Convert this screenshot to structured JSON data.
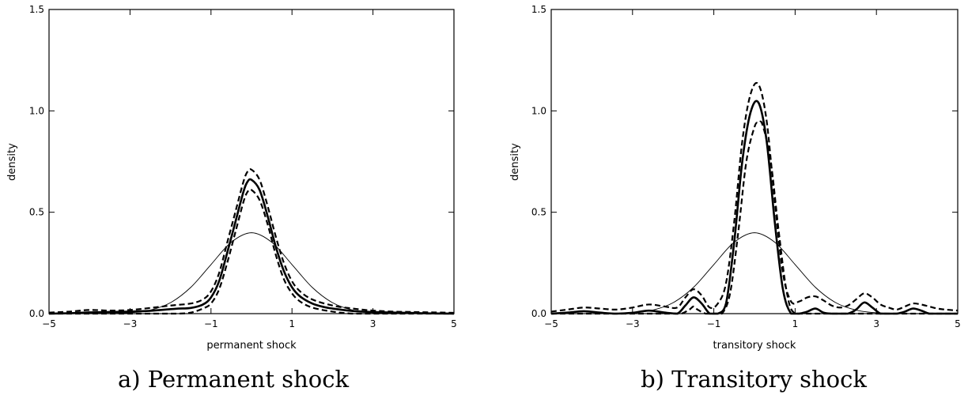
{
  "chart_data": [
    {
      "type": "line",
      "xlabel": "permanent shock",
      "ylabel": "density",
      "caption": "a) Permanent shock",
      "xlim": [
        -5,
        5
      ],
      "ylim": [
        0,
        1.5
      ],
      "xticks": [
        -5,
        -3,
        -1,
        1,
        3,
        5
      ],
      "xtick_labels": [
        "−5",
        "−3",
        "−1",
        "1",
        "3",
        "5"
      ],
      "yticks": [
        0.0,
        0.5,
        1.0,
        1.5
      ],
      "ytick_labels": [
        "0.0",
        "0.5",
        "1.0",
        "1.5"
      ],
      "grid": false,
      "series": [
        {
          "style": "thin-solid",
          "x": [
            -5,
            -4.5,
            -4,
            -3.5,
            -3,
            -2.5,
            -2,
            -1.5,
            -1,
            -0.5,
            0,
            0.5,
            1,
            1.5,
            2,
            2.5,
            3,
            3.5,
            4,
            4.5,
            5
          ],
          "y": [
            0.0,
            0.0,
            0.0001,
            0.0009,
            0.0044,
            0.0175,
            0.054,
            0.1295,
            0.242,
            0.3521,
            0.3989,
            0.3521,
            0.242,
            0.1295,
            0.054,
            0.0175,
            0.0044,
            0.0009,
            0.0001,
            0.0,
            0.0
          ]
        },
        {
          "style": "thick-solid",
          "x": [
            -5,
            -4.5,
            -4,
            -3.5,
            -3,
            -2.5,
            -2,
            -1.8,
            -1.5,
            -1.2,
            -1,
            -0.8,
            -0.6,
            -0.4,
            -0.2,
            -0.1,
            0,
            0.2,
            0.4,
            0.6,
            0.8,
            1,
            1.2,
            1.5,
            1.8,
            2,
            2.5,
            3,
            3.5,
            4,
            4.5,
            5
          ],
          "y": [
            0.0,
            0.002,
            0.006,
            0.008,
            0.01,
            0.014,
            0.022,
            0.025,
            0.028,
            0.045,
            0.08,
            0.16,
            0.3,
            0.45,
            0.6,
            0.65,
            0.66,
            0.61,
            0.48,
            0.33,
            0.21,
            0.13,
            0.085,
            0.05,
            0.032,
            0.025,
            0.013,
            0.008,
            0.005,
            0.003,
            0.001,
            0.0
          ]
        },
        {
          "style": "dashed-upper",
          "x": [
            -5,
            -4.5,
            -4,
            -3.5,
            -3,
            -2.5,
            -2,
            -1.5,
            -1.2,
            -1,
            -0.8,
            -0.6,
            -0.4,
            -0.2,
            -0.1,
            0,
            0.2,
            0.4,
            0.6,
            0.8,
            1,
            1.2,
            1.5,
            2,
            2.5,
            3,
            3.5,
            4,
            4.5,
            5
          ],
          "y": [
            0.005,
            0.01,
            0.018,
            0.015,
            0.018,
            0.028,
            0.04,
            0.05,
            0.07,
            0.11,
            0.2,
            0.35,
            0.5,
            0.65,
            0.7,
            0.71,
            0.66,
            0.53,
            0.38,
            0.25,
            0.16,
            0.11,
            0.07,
            0.04,
            0.025,
            0.015,
            0.01,
            0.008,
            0.006,
            0.004
          ]
        },
        {
          "style": "dashed-lower",
          "x": [
            -5,
            -4,
            -3,
            -2.5,
            -2,
            -1.8,
            -1.5,
            -1.2,
            -1,
            -0.8,
            -0.6,
            -0.4,
            -0.2,
            -0.1,
            0,
            0.2,
            0.4,
            0.6,
            0.8,
            1,
            1.2,
            1.5,
            2,
            2.5,
            3,
            3.5,
            4,
            5
          ],
          "y": [
            0.0,
            0.0,
            0.0,
            0.0,
            0.0,
            0.0,
            0.005,
            0.025,
            0.05,
            0.12,
            0.25,
            0.4,
            0.55,
            0.6,
            0.61,
            0.56,
            0.44,
            0.29,
            0.17,
            0.1,
            0.06,
            0.03,
            0.01,
            0.0,
            0.0,
            0.0,
            0.0,
            0.0
          ]
        }
      ]
    },
    {
      "type": "line",
      "xlabel": "transitory shock",
      "ylabel": "density",
      "caption": "b) Transitory shock",
      "xlim": [
        -5,
        5
      ],
      "ylim": [
        0,
        1.5
      ],
      "xticks": [
        -5,
        -3,
        -1,
        1,
        3,
        5
      ],
      "xtick_labels": [
        "−5",
        "−3",
        "−1",
        "1",
        "3",
        "5"
      ],
      "yticks": [
        0.0,
        0.5,
        1.0,
        1.5
      ],
      "ytick_labels": [
        "0.0",
        "0.5",
        "1.0",
        "1.5"
      ],
      "grid": false,
      "series": [
        {
          "style": "thin-solid",
          "x": [
            -5,
            -4.5,
            -4,
            -3.5,
            -3,
            -2.5,
            -2,
            -1.5,
            -1,
            -0.5,
            0,
            0.5,
            1,
            1.5,
            2,
            2.5,
            3,
            3.5,
            4,
            4.5,
            5
          ],
          "y": [
            0.0,
            0.0,
            0.0001,
            0.0009,
            0.0044,
            0.0175,
            0.054,
            0.1295,
            0.242,
            0.3521,
            0.3989,
            0.3521,
            0.242,
            0.1295,
            0.054,
            0.0175,
            0.0044,
            0.0009,
            0.0001,
            0.0,
            0.0
          ]
        },
        {
          "style": "thick-solid",
          "x": [
            -5,
            -4.6,
            -4.2,
            -3.8,
            -3.4,
            -3.0,
            -2.6,
            -2.2,
            -1.9,
            -1.7,
            -1.5,
            -1.3,
            -1.1,
            -0.9,
            -0.7,
            -0.5,
            -0.3,
            -0.1,
            0.1,
            0.3,
            0.5,
            0.7,
            0.9,
            1.1,
            1.3,
            1.5,
            1.7,
            1.9,
            2.1,
            2.3,
            2.5,
            2.7,
            2.9,
            3.1,
            3.3,
            3.5,
            3.7,
            3.9,
            4.1,
            4.3,
            4.5,
            4.7,
            5
          ],
          "y": [
            0.0,
            0.005,
            0.012,
            0.005,
            0.0,
            0.004,
            0.015,
            0.005,
            0.0,
            0.04,
            0.08,
            0.05,
            0.0,
            0.0,
            0.05,
            0.35,
            0.75,
            0.99,
            1.04,
            0.85,
            0.45,
            0.12,
            0.0,
            0.0,
            0.01,
            0.025,
            0.005,
            0.0,
            0.0,
            0.0,
            0.02,
            0.055,
            0.03,
            0.0,
            0.0,
            0.0,
            0.01,
            0.025,
            0.015,
            0.0,
            0.0,
            0.0,
            0.0
          ]
        },
        {
          "style": "dashed-upper",
          "x": [
            -5,
            -4.6,
            -4.2,
            -3.8,
            -3.4,
            -3.0,
            -2.6,
            -2.2,
            -1.9,
            -1.7,
            -1.5,
            -1.3,
            -1.1,
            -0.9,
            -0.7,
            -0.5,
            -0.3,
            -0.1,
            0.1,
            0.3,
            0.5,
            0.7,
            0.9,
            1.1,
            1.3,
            1.5,
            1.7,
            1.9,
            2.1,
            2.3,
            2.5,
            2.7,
            2.9,
            3.1,
            3.3,
            3.5,
            3.7,
            3.9,
            4.1,
            4.3,
            4.5,
            4.7,
            5
          ],
          "y": [
            0.01,
            0.02,
            0.03,
            0.025,
            0.02,
            0.03,
            0.045,
            0.035,
            0.03,
            0.08,
            0.12,
            0.09,
            0.03,
            0.05,
            0.15,
            0.45,
            0.85,
            1.08,
            1.13,
            0.95,
            0.55,
            0.2,
            0.06,
            0.06,
            0.08,
            0.085,
            0.065,
            0.04,
            0.03,
            0.04,
            0.07,
            0.1,
            0.08,
            0.045,
            0.03,
            0.02,
            0.035,
            0.05,
            0.045,
            0.035,
            0.025,
            0.02,
            0.015
          ]
        },
        {
          "style": "dashed-lower",
          "x": [
            -5,
            -4,
            -3,
            -2,
            -1.8,
            -1.6,
            -1.5,
            -1.4,
            -1.2,
            -1.0,
            -0.8,
            -0.6,
            -0.4,
            -0.2,
            0,
            0.1,
            0.2,
            0.4,
            0.6,
            0.8,
            1.0,
            1.5,
            2,
            3,
            4,
            5
          ],
          "y": [
            0.0,
            0.0,
            0.0,
            0.0,
            0.0,
            0.02,
            0.035,
            0.02,
            0.0,
            0.0,
            0.0,
            0.1,
            0.4,
            0.75,
            0.92,
            0.94,
            0.93,
            0.75,
            0.4,
            0.1,
            0.0,
            0.0,
            0.0,
            0.0,
            0.0,
            0.0
          ]
        }
      ]
    }
  ]
}
